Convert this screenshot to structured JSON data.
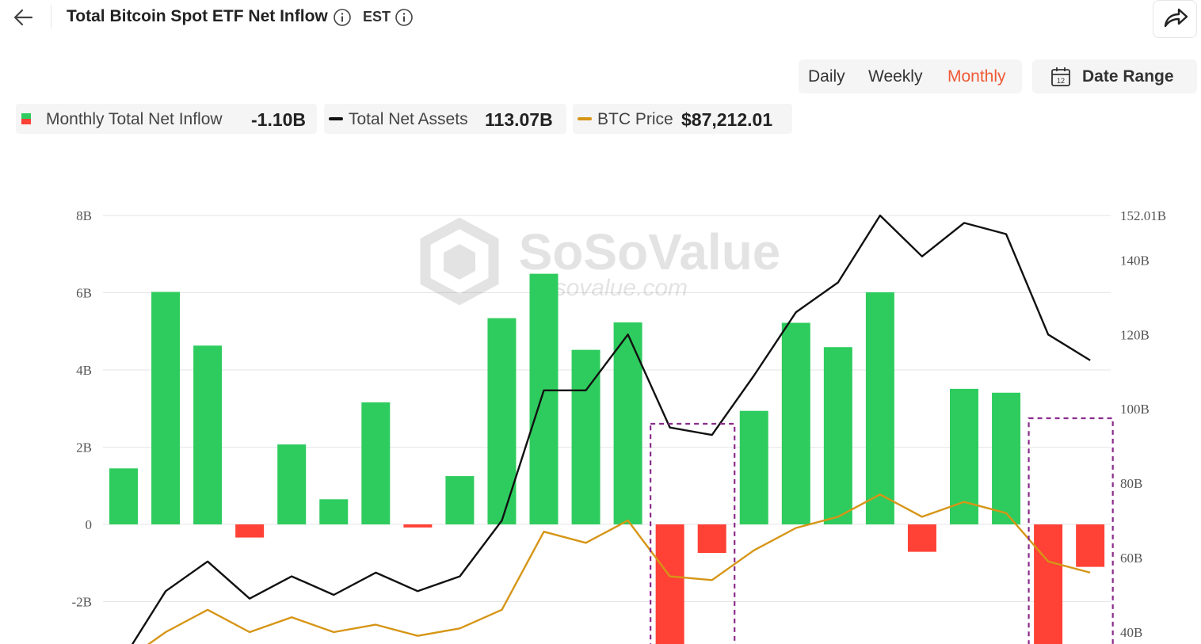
{
  "header": {
    "title": "Total Bitcoin Spot ETF Net Inflow",
    "timezone": "EST"
  },
  "controls": {
    "periods": [
      "Daily",
      "Weekly",
      "Monthly"
    ],
    "active_period": "Monthly",
    "date_range_label": "Date Range"
  },
  "legend": [
    {
      "name": "Monthly Total Net Inflow",
      "value": "-1.10B",
      "color": "#2ecc5e"
    },
    {
      "name": "Total Net Assets",
      "value": "113.07B",
      "color": "#111111"
    },
    {
      "name": "BTC Price",
      "value": "$87,212.01",
      "color": "#d69516"
    }
  ],
  "watermark": {
    "brand": "SoSoValue",
    "site": "sosovalue.com"
  },
  "colors": {
    "positive": "#2ecc5e",
    "negative": "#ff4136",
    "assets_line": "#111111",
    "price_line": "#d69516",
    "highlight_box": "#8b2b8b"
  },
  "chart_data": {
    "type": "bar",
    "left_axis": {
      "ticks": [
        "8B",
        "6B",
        "4B",
        "2B",
        "0",
        "-2B"
      ],
      "tick_values": [
        8,
        6,
        4,
        2,
        0,
        -2
      ],
      "range": [
        -3.2,
        8
      ]
    },
    "right_axis": {
      "ticks": [
        "152.01B",
        "140B",
        "120B",
        "100B",
        "80B",
        "60B",
        "40B"
      ],
      "tick_values": [
        152.01,
        140,
        120,
        100,
        80,
        60,
        40
      ],
      "range": [
        40,
        152.01
      ]
    },
    "grid": true,
    "series": [
      {
        "name": "Monthly Total Net Inflow",
        "kind": "bar",
        "axis": "left",
        "values": [
          1.45,
          6.02,
          4.63,
          -0.34,
          2.07,
          0.65,
          3.16,
          -0.08,
          1.25,
          5.34,
          6.49,
          4.52,
          5.23,
          -3.6,
          -0.74,
          2.94,
          5.22,
          4.59,
          6.01,
          -0.71,
          3.51,
          3.41,
          -3.6,
          -1.1
        ]
      },
      {
        "name": "Total Net Assets",
        "kind": "line",
        "axis": "right",
        "values": [
          33,
          51,
          59,
          49,
          55,
          50,
          56,
          51,
          55,
          70,
          105,
          105,
          120,
          95,
          93,
          109,
          126,
          134,
          152,
          141,
          150,
          147,
          120,
          113.07
        ]
      },
      {
        "name": "BTC Price",
        "kind": "line",
        "axis": "right",
        "values": [
          32,
          40,
          46,
          40,
          44,
          40,
          42,
          39,
          41,
          46,
          67,
          64,
          70,
          55,
          54,
          62,
          68,
          71,
          77,
          71,
          75,
          72,
          59,
          56
        ]
      }
    ],
    "highlights": [
      [
        13,
        14
      ],
      [
        22,
        23
      ]
    ]
  }
}
